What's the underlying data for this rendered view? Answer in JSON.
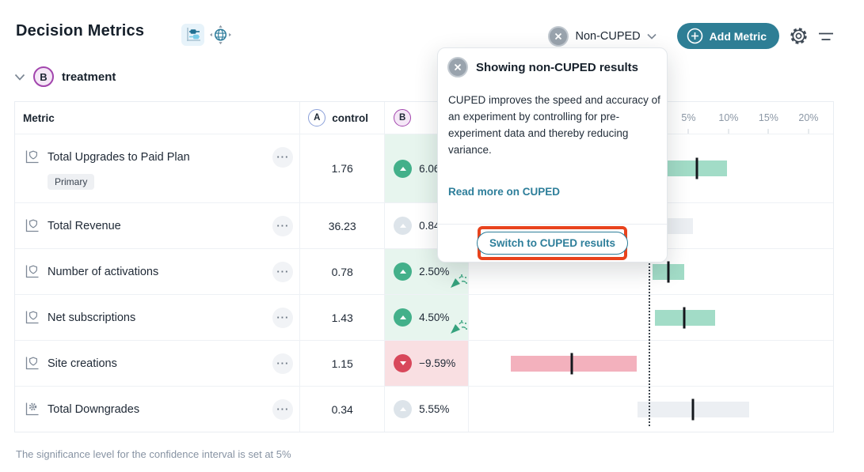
{
  "header": {
    "title": "Decision Metrics",
    "view_icons": [
      {
        "name": "forest-plot-view-icon",
        "active": true
      },
      {
        "name": "pan-view-icon",
        "active": false
      }
    ],
    "cuped_dropdown": {
      "icon": "close-circle-icon",
      "label": "Non-CUPED",
      "chevron": "chevron-down-icon"
    },
    "add_metric_button": {
      "icon": "plus-circle-icon",
      "label": "Add Metric"
    },
    "settings_icon": "gear-icon",
    "filter_icon": "filter-lines-icon"
  },
  "variant_section": {
    "badge": "B",
    "name": "treatment",
    "chevron": "chevron-down-icon"
  },
  "table": {
    "columns": {
      "metric": "Metric",
      "control_badge": "A",
      "control_label": "control",
      "variant_badge": "B"
    },
    "axis_tick_labels": [
      "5%",
      "10%",
      "15%",
      "20%"
    ],
    "rows": [
      {
        "name": "Total Upgrades to Paid Plan",
        "tag": "Primary",
        "icon": "shield-metric-icon",
        "control": "1.76",
        "delta": "6.06%",
        "trend": "up",
        "highlight": "positive",
        "celebration": true
      },
      {
        "name": "Total Revenue",
        "icon": "shield-metric-icon",
        "control": "36.23",
        "delta": "0.84%",
        "trend": "neutral",
        "highlight": "none",
        "celebration": false
      },
      {
        "name": "Number of activations",
        "icon": "shield-metric-icon",
        "control": "0.78",
        "delta": "2.50%",
        "trend": "up",
        "highlight": "positive",
        "celebration": true
      },
      {
        "name": "Net subscriptions",
        "icon": "shield-metric-icon",
        "control": "1.43",
        "delta": "4.50%",
        "trend": "up",
        "highlight": "positive",
        "celebration": true
      },
      {
        "name": "Site creations",
        "icon": "shield-metric-icon",
        "control": "1.15",
        "delta": "−9.59%",
        "trend": "down",
        "highlight": "negative",
        "celebration": false
      },
      {
        "name": "Total Downgrades",
        "icon": "gear-metric-icon",
        "control": "0.34",
        "delta": "5.55%",
        "trend": "neutral",
        "highlight": "none",
        "celebration": false
      }
    ]
  },
  "chart_data": {
    "type": "bar",
    "subtype": "horizontal-confidence-interval-forest",
    "categories": [
      "Total Upgrades to Paid Plan",
      "Total Revenue",
      "Number of activations",
      "Net subscriptions",
      "Site creations",
      "Total Downgrades"
    ],
    "series": [
      {
        "name": "treatment",
        "points_pct": [
          6.06,
          0.84,
          2.5,
          4.5,
          -9.59,
          5.55
        ],
        "ci_low_pct": [
          2.3,
          -4.0,
          0.5,
          0.8,
          -17.2,
          -1.4
        ],
        "ci_high_pct": [
          9.8,
          5.6,
          4.5,
          8.3,
          -1.5,
          12.6
        ]
      }
    ],
    "control_values": [
      1.76,
      36.23,
      0.78,
      1.43,
      1.15,
      0.34
    ],
    "x_ticks_pct": [
      5,
      10,
      15,
      20
    ],
    "zero_line_pct": 0,
    "xlim_pct": [
      -22.5,
      23.3
    ],
    "grid": false,
    "legend": false,
    "colors": {
      "positive_bar": "#a2dcc7",
      "negative_bar": "#f3b1bd",
      "neutral_bar": "#eceff3",
      "point_marker": "#14181d"
    }
  },
  "popover": {
    "dismiss_icon": "close-circle-icon",
    "title": "Showing non-CUPED results",
    "body": "CUPED improves the speed and accuracy of an experiment by controlling for pre-experiment data and thereby reducing variance.",
    "link": "Read more on CUPED",
    "action_button": "Switch to CUPED results",
    "annotation_color": "#e8431d"
  },
  "footer": {
    "note": "The significance level for the confidence interval is set at 5%"
  },
  "colors": {
    "accent_teal": "#2e7e95",
    "link_teal": "#2d7e9a",
    "positive": "#43b08a",
    "negative": "#d8485b",
    "neutral": "#dde4ea",
    "positive_bg": "#e7f5ee",
    "negative_bg": "#f9dfe2",
    "variant_b_purple": "#a245ad",
    "control_a_blue": "#8ba0d9",
    "annotation_red": "#e8431d"
  }
}
